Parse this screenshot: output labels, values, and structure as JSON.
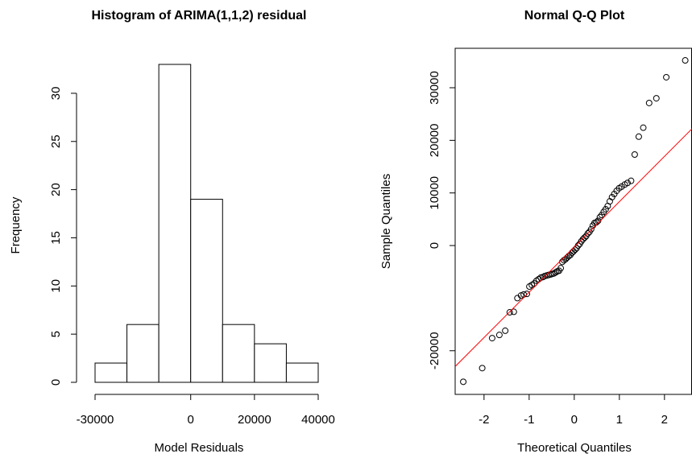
{
  "chart_data": [
    {
      "type": "histogram",
      "title": "Histogram of ARIMA(1,1,2) residual",
      "xlabel": "Model Residuals",
      "ylabel": "Frequency",
      "bins": [
        -30000,
        -20000,
        -10000,
        0,
        10000,
        20000,
        30000,
        40000
      ],
      "values": [
        2,
        6,
        33,
        19,
        6,
        4,
        2
      ],
      "xlim": [
        -30000,
        40000
      ],
      "xticks": [
        -30000,
        0,
        20000,
        40000
      ],
      "ylim": [
        0,
        33
      ],
      "yticks": [
        0,
        5,
        10,
        15,
        20,
        25,
        30
      ],
      "color": "#ffffff"
    },
    {
      "type": "qq",
      "title": "Normal Q-Q Plot",
      "xlabel": "Theoretical Quantiles",
      "ylabel": "Sample Quantiles",
      "x": [
        -2.46,
        -2.04,
        -1.82,
        -1.66,
        -1.53,
        -1.43,
        -1.34,
        -1.26,
        -1.18,
        -1.12,
        -1.05,
        -0.995,
        -0.94,
        -0.887,
        -0.837,
        -0.788,
        -0.742,
        -0.697,
        -0.653,
        -0.61,
        -0.569,
        -0.528,
        -0.489,
        -0.45,
        -0.412,
        -0.374,
        -0.337,
        -0.3,
        -0.264,
        -0.228,
        -0.193,
        -0.157,
        -0.122,
        -0.087,
        -0.052,
        -0.017,
        0.017,
        0.052,
        0.087,
        0.122,
        0.157,
        0.193,
        0.228,
        0.264,
        0.3,
        0.337,
        0.374,
        0.412,
        0.45,
        0.489,
        0.528,
        0.569,
        0.61,
        0.653,
        0.697,
        0.742,
        0.788,
        0.837,
        0.887,
        0.94,
        0.995,
        1.05,
        1.12,
        1.18,
        1.26,
        1.34,
        1.43,
        1.53,
        1.66,
        1.82,
        2.04,
        2.46
      ],
      "values": [
        -25900,
        -23300,
        -17600,
        -17000,
        -16200,
        -12700,
        -12600,
        -10000,
        -9500,
        -9300,
        -9200,
        -7800,
        -7500,
        -7200,
        -6700,
        -6400,
        -6100,
        -6000,
        -5800,
        -5700,
        -5600,
        -5500,
        -5400,
        -5300,
        -5100,
        -4900,
        -4800,
        -4300,
        -3100,
        -2800,
        -2600,
        -2300,
        -2000,
        -1800,
        -1400,
        -1100,
        -800,
        -500,
        0,
        300,
        800,
        1200,
        1500,
        1800,
        2300,
        2600,
        3100,
        3800,
        4300,
        4400,
        4700,
        5400,
        5800,
        6400,
        6900,
        7500,
        8400,
        9200,
        9800,
        10400,
        10900,
        11200,
        11600,
        11900,
        12300,
        17300,
        20700,
        22400,
        27100,
        28000,
        32000,
        35200
      ],
      "qqline": {
        "intercept": -270,
        "slope": 8610,
        "color": "#ff0000"
      },
      "xlim": [
        -2.64,
        2.61
      ],
      "xticks": [
        -2,
        -1,
        0,
        1,
        2
      ],
      "ylim": [
        -28300,
        37500
      ],
      "yticks": [
        -20000,
        0,
        10000,
        20000,
        30000
      ]
    }
  ]
}
